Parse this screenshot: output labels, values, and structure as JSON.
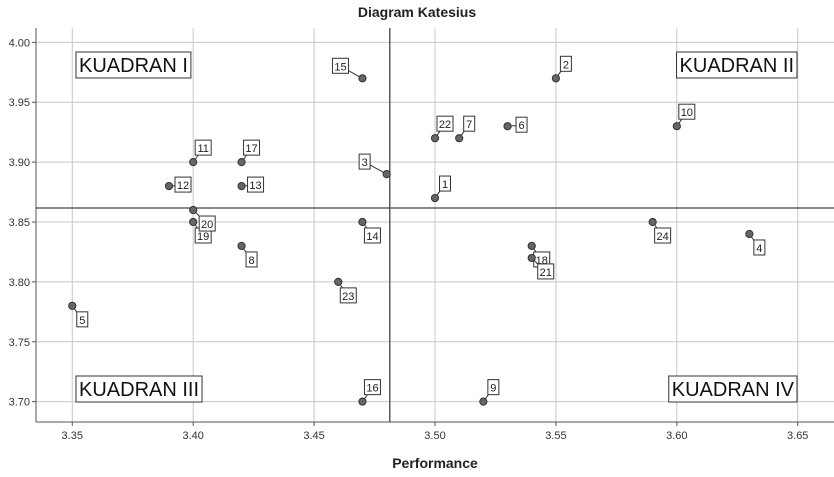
{
  "chart_data": {
    "type": "scatter",
    "title": "Diagram Katesius",
    "xlabel": "Performance",
    "ylabel": "",
    "xlim": [
      3.335,
      3.665
    ],
    "ylim": [
      3.683,
      4.012
    ],
    "xticks": [
      3.35,
      3.4,
      3.45,
      3.5,
      3.55,
      3.6,
      3.65
    ],
    "xtick_labels": [
      "3.35",
      "3.40",
      "3.45",
      "3.50",
      "3.55",
      "3.60",
      "3.65"
    ],
    "yticks": [
      3.7,
      3.75,
      3.8,
      3.85,
      3.9,
      3.95,
      4.0
    ],
    "ytick_labels": [
      "3.70",
      "3.75",
      "3.80",
      "3.85",
      "3.90",
      "3.95",
      "4.00"
    ],
    "grid": true,
    "reference_lines": {
      "x": 3.4813,
      "y": 3.8617
    },
    "quadrants": [
      {
        "label": "KUADRAN I",
        "position": "top-left"
      },
      {
        "label": "KUADRAN II",
        "position": "top-right"
      },
      {
        "label": "KUADRAN III",
        "position": "bottom-left"
      },
      {
        "label": "KUADRAN IV",
        "position": "bottom-right"
      }
    ],
    "points": [
      {
        "label": "1",
        "x": 3.5,
        "y": 3.87,
        "anchor": "up-right"
      },
      {
        "label": "2",
        "x": 3.55,
        "y": 3.97,
        "anchor": "up-right"
      },
      {
        "label": "3",
        "x": 3.48,
        "y": 3.89,
        "anchor": "up-left"
      },
      {
        "label": "4",
        "x": 3.63,
        "y": 3.84,
        "anchor": "down-right"
      },
      {
        "label": "5",
        "x": 3.35,
        "y": 3.78,
        "anchor": "down-right"
      },
      {
        "label": "6",
        "x": 3.53,
        "y": 3.93,
        "anchor": "right"
      },
      {
        "label": "7",
        "x": 3.51,
        "y": 3.92,
        "anchor": "up-right"
      },
      {
        "label": "8",
        "x": 3.42,
        "y": 3.83,
        "anchor": "down-right"
      },
      {
        "label": "9",
        "x": 3.52,
        "y": 3.7,
        "anchor": "up-right"
      },
      {
        "label": "10",
        "x": 3.6,
        "y": 3.93,
        "anchor": "up-right"
      },
      {
        "label": "11",
        "x": 3.4,
        "y": 3.9,
        "anchor": "up-right"
      },
      {
        "label": "12",
        "x": 3.39,
        "y": 3.88,
        "anchor": "right"
      },
      {
        "label": "13",
        "x": 3.42,
        "y": 3.88,
        "anchor": "right"
      },
      {
        "label": "14",
        "x": 3.47,
        "y": 3.85,
        "anchor": "down-right"
      },
      {
        "label": "15",
        "x": 3.47,
        "y": 3.97,
        "anchor": "up-left"
      },
      {
        "label": "16",
        "x": 3.47,
        "y": 3.7,
        "anchor": "up-right"
      },
      {
        "label": "17",
        "x": 3.42,
        "y": 3.9,
        "anchor": "up-right"
      },
      {
        "label": "18",
        "x": 3.54,
        "y": 3.83,
        "anchor": "down-right"
      },
      {
        "label": "19",
        "x": 3.4,
        "y": 3.85,
        "anchor": "down-right"
      },
      {
        "label": "20",
        "x": 3.4,
        "y": 3.86,
        "anchor": "down-right-far"
      },
      {
        "label": "21",
        "x": 3.54,
        "y": 3.82,
        "anchor": "down-right-far"
      },
      {
        "label": "22",
        "x": 3.5,
        "y": 3.92,
        "anchor": "up-right"
      },
      {
        "label": "23",
        "x": 3.46,
        "y": 3.8,
        "anchor": "down-right"
      },
      {
        "label": "24",
        "x": 3.59,
        "y": 3.85,
        "anchor": "down-right"
      }
    ],
    "colors": {
      "marker": "#666666",
      "marker_edge": "#333333",
      "grid": "#c8c8c8",
      "reference_line": "#444444"
    }
  }
}
